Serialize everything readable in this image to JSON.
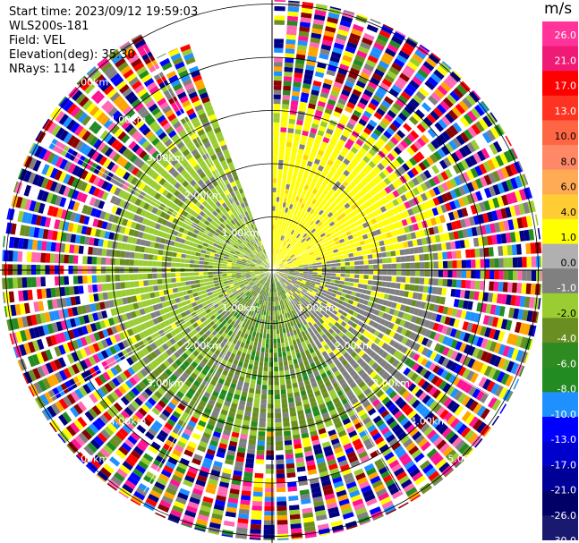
{
  "header": {
    "start_time": "Start time: 2023/09/12 19:59:03",
    "instrument": "WLS200s-181",
    "field": "Field: VEL",
    "elevation": "Elevation(deg): 35.30",
    "nrays": "NRays: 114"
  },
  "colorbar": {
    "unit": "m/s",
    "ticks": [
      "26.0",
      "21.0",
      "17.0",
      "13.0",
      "10.0",
      "8.0",
      "6.0",
      "4.0",
      "1.0",
      "0.0",
      "-1.0",
      "-2.0",
      "-4.0",
      "-6.0",
      "-8.0",
      "-10.0",
      "-13.0",
      "-17.0",
      "-21.0",
      "-26.0",
      "-30.0"
    ],
    "colors": [
      "#ff3399",
      "#ee1a75",
      "#ff0000",
      "#ff3322",
      "#ff6644",
      "#ff8866",
      "#ffaa55",
      "#ffcc33",
      "#ffff00",
      "#b0b0b0",
      "#808080",
      "#9acd32",
      "#6b8e23",
      "#2e8b22",
      "#228b22",
      "#1e90ff",
      "#0000ff",
      "#0000cd",
      "#000099",
      "#000066",
      "#191970"
    ]
  },
  "chart_data": {
    "type": "heatmap",
    "title": "",
    "field": "VEL",
    "units": "m/s",
    "range_rings_km": [
      "1.00km",
      "2.00km",
      "3.00km",
      "4.00km",
      "5.00km"
    ],
    "nrays": 114,
    "elevation_deg": 35.3,
    "colorbar_range": [
      -30.0,
      26.0
    ],
    "missing_sector_deg": [
      -20,
      0
    ],
    "quadrant_dominant_values": [
      {
        "sector": "north-east (0-90 deg)",
        "value": 4.0
      },
      {
        "sector": "east-south (90-135 deg)",
        "value": 0.0
      },
      {
        "sector": "west / south-west (180-340 deg)",
        "value": -2.0
      }
    ]
  }
}
